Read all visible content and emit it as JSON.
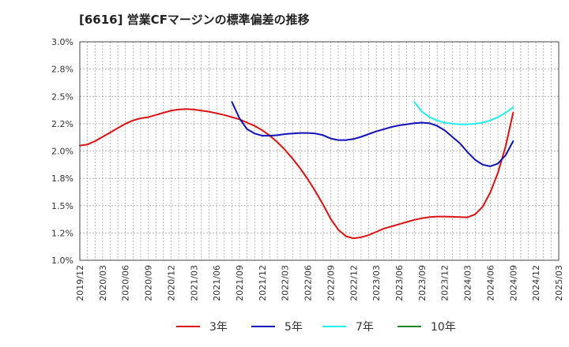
{
  "title": "[6616]  営業CFマージンの標準偏差の推移",
  "chart_data": {
    "type": "line",
    "title": "[6616]  営業CFマージンの標準偏差の推移",
    "xlabel": "",
    "ylabel": "",
    "ylim": [
      1.0,
      3.0
    ],
    "yticks": [
      "1.0%",
      "1.2%",
      "1.5%",
      "1.8%",
      "2.0%",
      "2.2%",
      "2.5%",
      "2.8%",
      "3.0%"
    ],
    "xticks": [
      "2019/12",
      "2020/03",
      "2020/06",
      "2020/09",
      "2020/12",
      "2021/03",
      "2021/06",
      "2021/09",
      "2021/12",
      "2022/03",
      "2022/06",
      "2022/09",
      "2022/12",
      "2023/03",
      "2023/06",
      "2023/09",
      "2023/12",
      "2024/03",
      "2024/06",
      "2024/09",
      "2024/12",
      "2025/03"
    ],
    "grid": true,
    "legend_position": "bottom",
    "series": [
      {
        "name": "3年",
        "color": "#dd1111",
        "points": [
          [
            "2019/12",
            2.05
          ],
          [
            "2020/01",
            2.06
          ],
          [
            "2020/02",
            2.09
          ],
          [
            "2020/03",
            2.13
          ],
          [
            "2020/04",
            2.17
          ],
          [
            "2020/05",
            2.21
          ],
          [
            "2020/06",
            2.25
          ],
          [
            "2020/07",
            2.28
          ],
          [
            "2020/08",
            2.3
          ],
          [
            "2020/09",
            2.31
          ],
          [
            "2020/10",
            2.33
          ],
          [
            "2020/11",
            2.35
          ],
          [
            "2020/12",
            2.37
          ],
          [
            "2021/01",
            2.38
          ],
          [
            "2021/02",
            2.385
          ],
          [
            "2021/03",
            2.38
          ],
          [
            "2021/04",
            2.37
          ],
          [
            "2021/05",
            2.36
          ],
          [
            "2021/06",
            2.345
          ],
          [
            "2021/07",
            2.33
          ],
          [
            "2021/08",
            2.31
          ],
          [
            "2021/09",
            2.29
          ],
          [
            "2021/10",
            2.26
          ],
          [
            "2021/11",
            2.23
          ],
          [
            "2021/12",
            2.19
          ],
          [
            "2022/01",
            2.14
          ],
          [
            "2022/02",
            2.08
          ],
          [
            "2022/03",
            2.01
          ],
          [
            "2022/04",
            1.93
          ],
          [
            "2022/05",
            1.84
          ],
          [
            "2022/06",
            1.74
          ],
          [
            "2022/07",
            1.63
          ],
          [
            "2022/08",
            1.51
          ],
          [
            "2022/09",
            1.38
          ],
          [
            "2022/10",
            1.28
          ],
          [
            "2022/11",
            1.22
          ],
          [
            "2022/12",
            1.2
          ],
          [
            "2023/01",
            1.21
          ],
          [
            "2023/02",
            1.23
          ],
          [
            "2023/03",
            1.26
          ],
          [
            "2023/04",
            1.29
          ],
          [
            "2023/05",
            1.31
          ],
          [
            "2023/06",
            1.33
          ],
          [
            "2023/07",
            1.35
          ],
          [
            "2023/08",
            1.37
          ],
          [
            "2023/09",
            1.385
          ],
          [
            "2023/10",
            1.395
          ],
          [
            "2023/11",
            1.4
          ],
          [
            "2023/12",
            1.4
          ],
          [
            "2024/01",
            1.398
          ],
          [
            "2024/02",
            1.395
          ],
          [
            "2024/03",
            1.393
          ],
          [
            "2024/04",
            1.42
          ],
          [
            "2024/05",
            1.49
          ],
          [
            "2024/06",
            1.62
          ],
          [
            "2024/07",
            1.8
          ],
          [
            "2024/08",
            2.04
          ],
          [
            "2024/09",
            2.35
          ]
        ]
      },
      {
        "name": "5年",
        "color": "#1111bb",
        "points": [
          [
            "2021/08",
            2.45
          ],
          [
            "2021/09",
            2.3
          ],
          [
            "2021/10",
            2.2
          ],
          [
            "2021/11",
            2.16
          ],
          [
            "2021/12",
            2.14
          ],
          [
            "2022/01",
            2.14
          ],
          [
            "2022/02",
            2.145
          ],
          [
            "2022/03",
            2.155
          ],
          [
            "2022/04",
            2.16
          ],
          [
            "2022/05",
            2.165
          ],
          [
            "2022/06",
            2.165
          ],
          [
            "2022/07",
            2.16
          ],
          [
            "2022/08",
            2.145
          ],
          [
            "2022/09",
            2.115
          ],
          [
            "2022/10",
            2.1
          ],
          [
            "2022/11",
            2.1
          ],
          [
            "2022/12",
            2.11
          ],
          [
            "2023/01",
            2.13
          ],
          [
            "2023/02",
            2.155
          ],
          [
            "2023/03",
            2.18
          ],
          [
            "2023/04",
            2.2
          ],
          [
            "2023/05",
            2.22
          ],
          [
            "2023/06",
            2.235
          ],
          [
            "2023/07",
            2.245
          ],
          [
            "2023/08",
            2.255
          ],
          [
            "2023/09",
            2.26
          ],
          [
            "2023/10",
            2.255
          ],
          [
            "2023/11",
            2.23
          ],
          [
            "2023/12",
            2.19
          ],
          [
            "2024/01",
            2.13
          ],
          [
            "2024/02",
            2.07
          ],
          [
            "2024/03",
            1.99
          ],
          [
            "2024/04",
            1.92
          ],
          [
            "2024/05",
            1.875
          ],
          [
            "2024/06",
            1.86
          ],
          [
            "2024/07",
            1.885
          ],
          [
            "2024/08",
            1.96
          ],
          [
            "2024/09",
            2.09
          ]
        ]
      },
      {
        "name": "7年",
        "color": "#22eeee",
        "points": [
          [
            "2023/08",
            2.45
          ],
          [
            "2023/09",
            2.36
          ],
          [
            "2023/10",
            2.31
          ],
          [
            "2023/11",
            2.28
          ],
          [
            "2023/12",
            2.26
          ],
          [
            "2024/01",
            2.25
          ],
          [
            "2024/02",
            2.245
          ],
          [
            "2024/03",
            2.245
          ],
          [
            "2024/04",
            2.25
          ],
          [
            "2024/05",
            2.26
          ],
          [
            "2024/06",
            2.28
          ],
          [
            "2024/07",
            2.31
          ],
          [
            "2024/08",
            2.35
          ],
          [
            "2024/09",
            2.4
          ]
        ]
      },
      {
        "name": "10年",
        "color": "#228822",
        "points": []
      }
    ]
  }
}
